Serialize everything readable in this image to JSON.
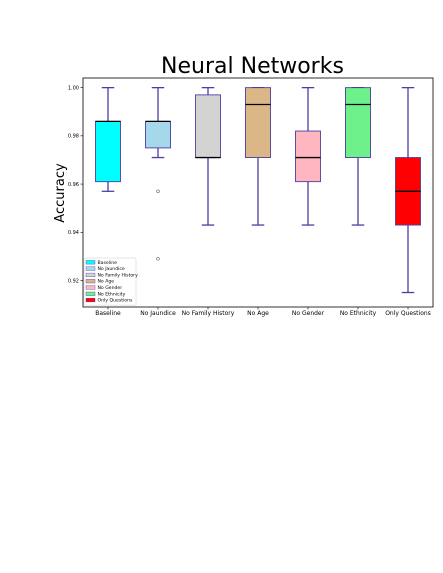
{
  "chart_data": {
    "type": "box",
    "title": "Neural Networks",
    "xlabel": "",
    "ylabel": "Accuracy",
    "ylim": [
      0.909,
      1.004
    ],
    "yticks": [
      0.92,
      0.94,
      0.96,
      0.98,
      1.0
    ],
    "ytick_labels": [
      "0.92",
      "0.94",
      "0.96",
      "0.98",
      "1.00"
    ],
    "grid": false,
    "legend_position": "lower-left",
    "categories": [
      "Baseline",
      "No Jaundice",
      "No Family History",
      "No Age",
      "No Gender",
      "No Ethnicity",
      "Only Questions"
    ],
    "series": [
      {
        "name": "Baseline",
        "color": "#00ffff",
        "whisker_low": 0.957,
        "q1": 0.961,
        "median": 0.986,
        "q3": 0.986,
        "whisker_high": 1.0,
        "outliers": []
      },
      {
        "name": "No Jaundice",
        "color": "#a5d8ea",
        "whisker_low": 0.971,
        "q1": 0.975,
        "median": 0.986,
        "q3": 0.986,
        "whisker_high": 1.0,
        "outliers": [
          0.957,
          0.929
        ]
      },
      {
        "name": "No Family History",
        "color": "#d3d3d3",
        "whisker_low": 0.943,
        "q1": 0.971,
        "median": 0.971,
        "q3": 0.997,
        "whisker_high": 1.0,
        "outliers": []
      },
      {
        "name": "No Age",
        "color": "#dbb687",
        "whisker_low": 0.943,
        "q1": 0.971,
        "median": 0.993,
        "q3": 1.0,
        "whisker_high": 1.0,
        "outliers": []
      },
      {
        "name": "No Gender",
        "color": "#ffb6c1",
        "whisker_low": 0.943,
        "q1": 0.961,
        "median": 0.971,
        "q3": 0.982,
        "whisker_high": 1.0,
        "outliers": []
      },
      {
        "name": "No Ethnicity",
        "color": "#6ef08a",
        "whisker_low": 0.943,
        "q1": 0.971,
        "median": 0.993,
        "q3": 1.0,
        "whisker_high": 1.0,
        "outliers": []
      },
      {
        "name": "Only Questions",
        "color": "#ff0000",
        "whisker_low": 0.915,
        "q1": 0.943,
        "median": 0.957,
        "q3": 0.971,
        "whisker_high": 1.0,
        "outliers": []
      }
    ]
  }
}
